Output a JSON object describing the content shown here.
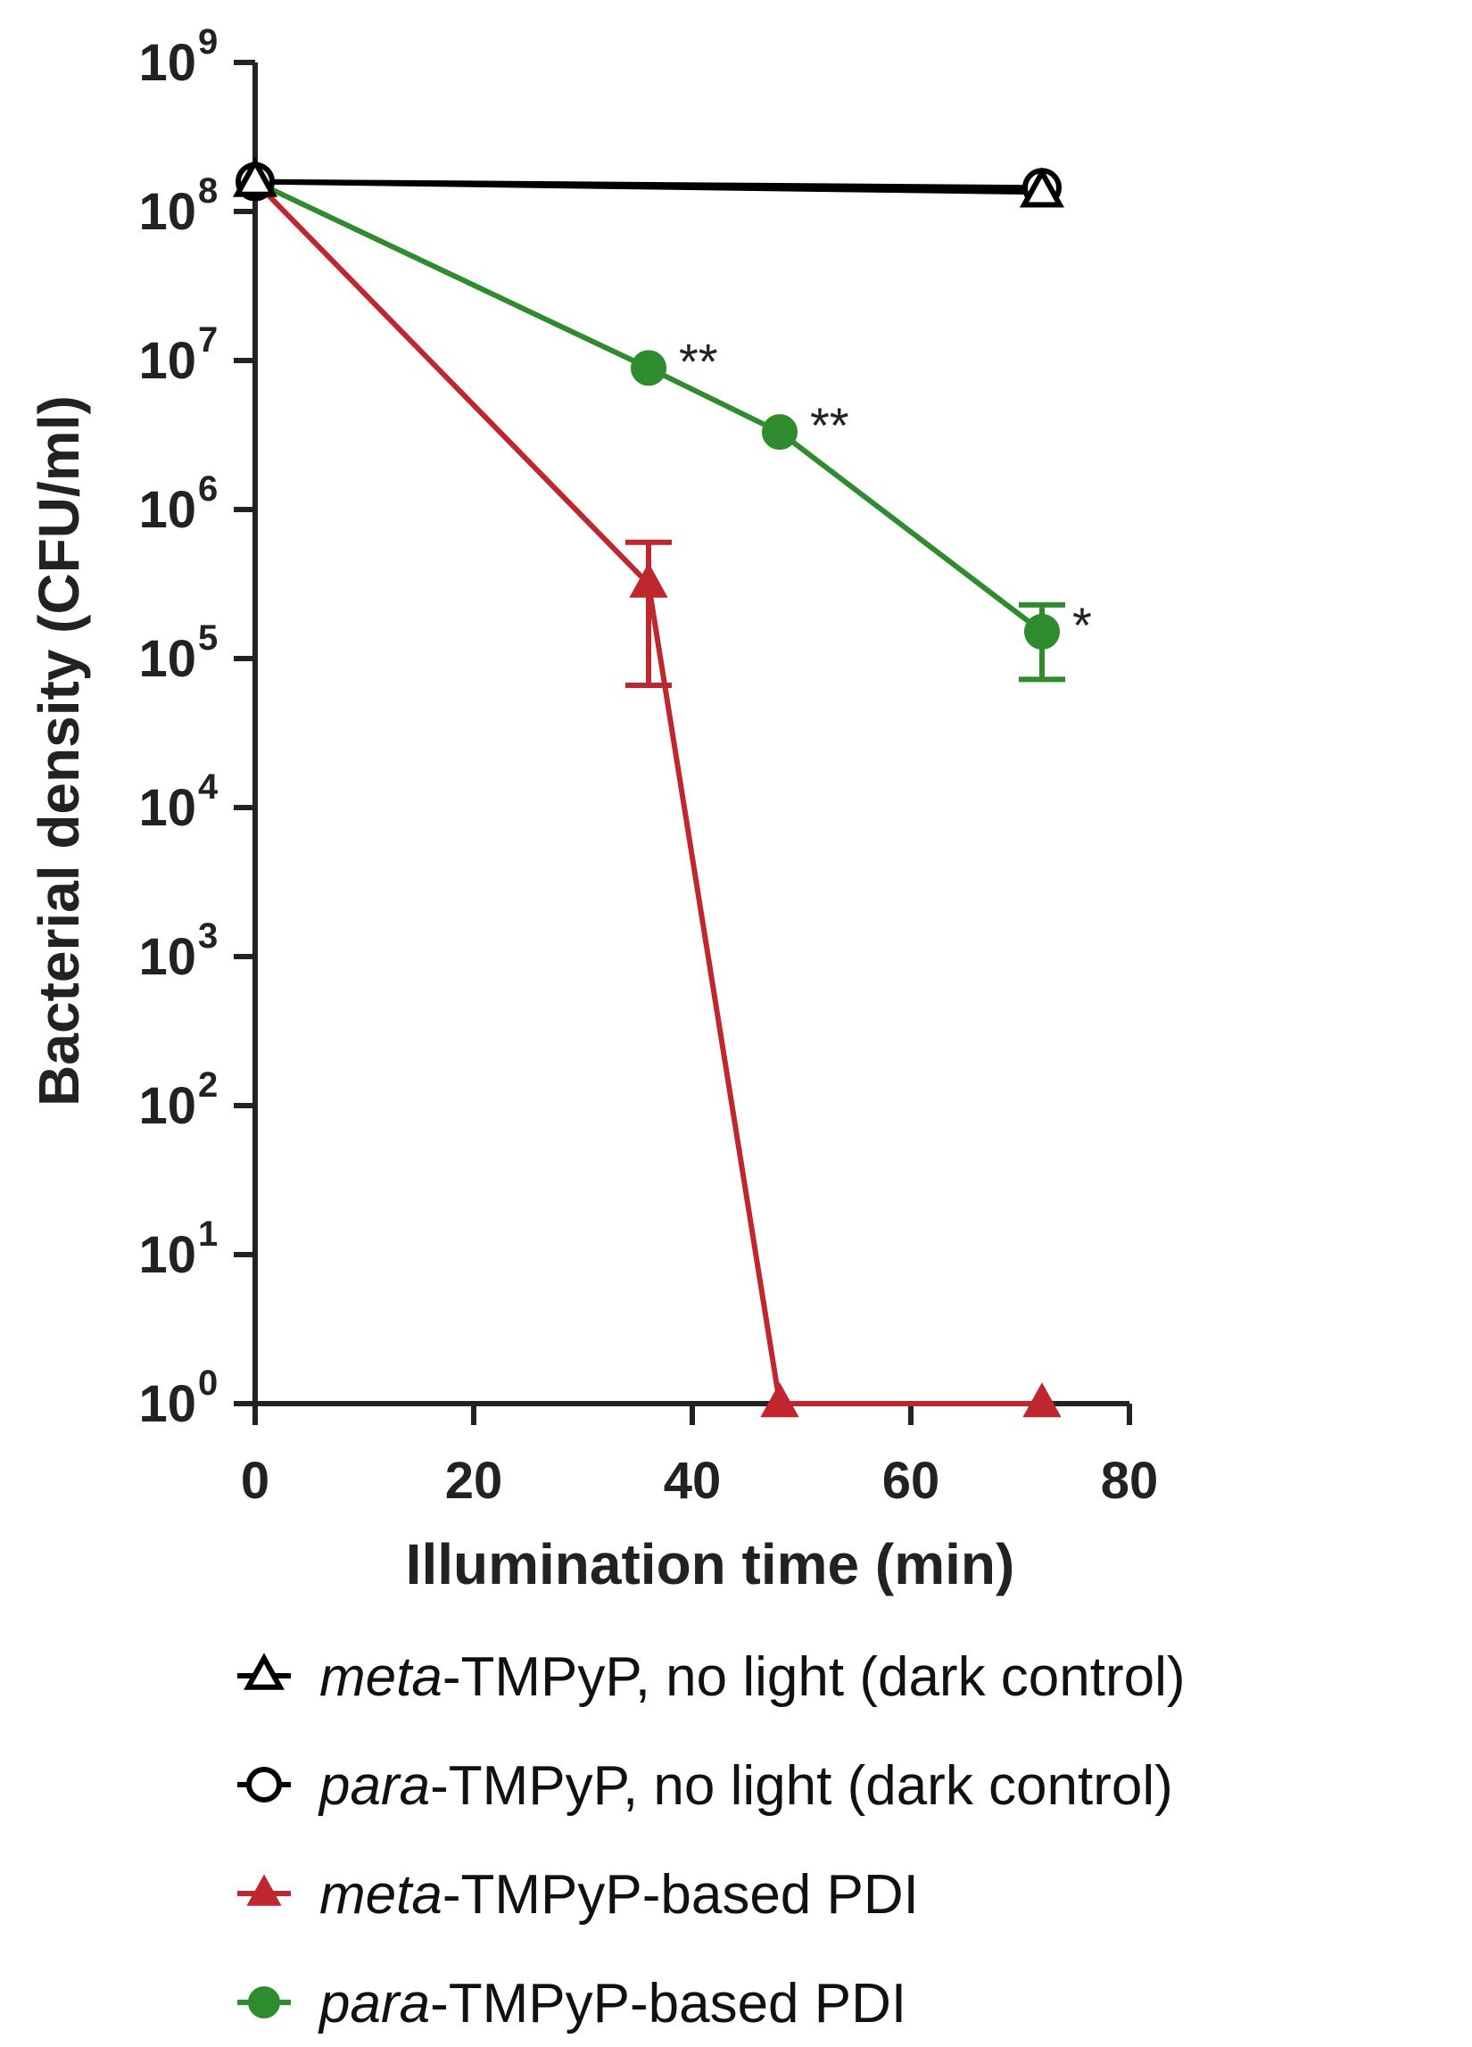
{
  "chart_data": {
    "type": "line",
    "xlabel": "Illumination time (min)",
    "ylabel": "Bacterial density (CFU/ml)",
    "xlim": [
      0,
      80
    ],
    "ylim_log10": [
      0,
      9
    ],
    "yscale": "log",
    "x_ticks": [
      "0",
      "20",
      "40",
      "60",
      "80"
    ],
    "x_tick_values": [
      0,
      20,
      40,
      60,
      80
    ],
    "y_tick_base": "10",
    "y_tick_exponents": [
      "0",
      "1",
      "2",
      "3",
      "4",
      "5",
      "6",
      "7",
      "8",
      "9"
    ],
    "grid": false,
    "legend_position": "bottom",
    "series": [
      {
        "name": "meta-TMPyP, no light (dark control)",
        "name_italic": "meta",
        "name_rest": "-TMPyP, no light (dark control)",
        "color": "#000000",
        "marker": "open-triangle",
        "x": [
          0,
          72
        ],
        "log10_values": [
          8.2,
          8.13
        ],
        "error_log10": [
          null,
          null
        ],
        "annotations": [
          "",
          ""
        ]
      },
      {
        "name": "para-TMPyP, no light (dark control)",
        "name_italic": "para",
        "name_rest": "-TMPyP, no light (dark control)",
        "color": "#000000",
        "marker": "open-circle",
        "x": [
          0,
          72
        ],
        "log10_values": [
          8.2,
          8.16
        ],
        "error_log10": [
          null,
          null
        ],
        "annotations": [
          "",
          ""
        ]
      },
      {
        "name": "meta-TMPyP-based PDI",
        "name_italic": "meta",
        "name_rest": "-TMPyP-based PDI",
        "color": "#c0262d",
        "marker": "filled-triangle",
        "x": [
          0,
          36,
          48,
          72
        ],
        "log10_values": [
          8.2,
          5.5,
          0,
          0
        ],
        "error_log10": [
          null,
          [
            4.82,
            5.78
          ],
          null,
          null
        ],
        "annotations": [
          "",
          "",
          "",
          ""
        ]
      },
      {
        "name": "para-TMPyP-based PDI",
        "name_italic": "para",
        "name_rest": "-TMPyP-based PDI",
        "color": "#2e8b2e",
        "marker": "filled-circle",
        "x": [
          0,
          36,
          48,
          72
        ],
        "log10_values": [
          8.2,
          6.95,
          6.52,
          5.18
        ],
        "error_log10": [
          null,
          null,
          null,
          [
            4.86,
            5.36
          ]
        ],
        "annotations": [
          "",
          "**",
          "**",
          "*"
        ]
      }
    ]
  }
}
